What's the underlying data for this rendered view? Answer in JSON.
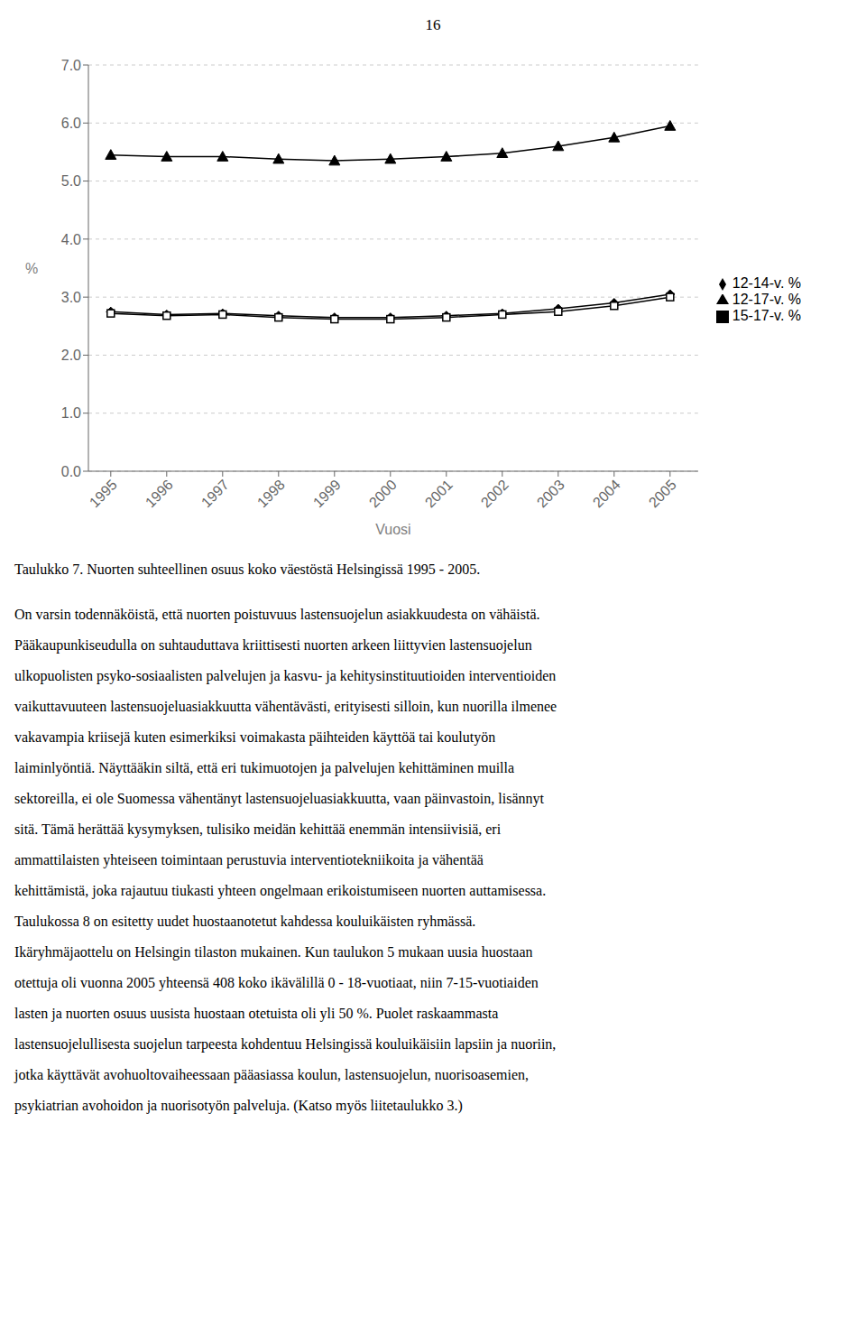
{
  "chart_data": {
    "type": "line",
    "title": "Taulukko 7. Nuorten suhteellinen osuus koko väestöstä Helsingissä 1995 - 2005.",
    "x": [
      1995,
      1996,
      1997,
      1998,
      1999,
      2000,
      2001,
      2002,
      2003,
      2004,
      2005
    ],
    "series": [
      {
        "name": "12-14-v. %",
        "color": "#000000",
        "marker": "diamond",
        "values": [
          2.75,
          2.7,
          2.72,
          2.68,
          2.65,
          2.65,
          2.68,
          2.72,
          2.8,
          2.9,
          3.05
        ]
      },
      {
        "name": "15-17-v. %",
        "color": "#000000",
        "marker": "square",
        "values": [
          2.72,
          2.68,
          2.7,
          2.65,
          2.62,
          2.62,
          2.65,
          2.7,
          2.75,
          2.85,
          3.0
        ]
      },
      {
        "name": "12-17-v. %",
        "color": "#000000",
        "marker": "triangle",
        "values": [
          5.45,
          5.42,
          5.42,
          5.38,
          5.35,
          5.38,
          5.42,
          5.48,
          5.6,
          5.75,
          5.95
        ]
      }
    ],
    "xlim": [
      1994.6,
      2005.5
    ],
    "xticks": [
      1995,
      1996,
      1997,
      1998,
      1999,
      2000,
      2001,
      2002,
      2003,
      2004,
      2005
    ],
    "ylim": [
      0.0,
      7.0
    ],
    "yticks": [
      {
        "value": 0,
        "label": "0.0"
      },
      {
        "value": 1,
        "label": "1.0"
      },
      {
        "value": 2,
        "label": "2.0"
      },
      {
        "value": 3,
        "label": "3.0"
      },
      {
        "value": 4,
        "label": "4.0"
      },
      {
        "value": 5,
        "label": "5.0"
      },
      {
        "value": 6,
        "label": "6.0"
      },
      {
        "value": 7,
        "label": "7.0"
      }
    ],
    "ylabel": "%",
    "xlabel": "Vuosi",
    "grid": true,
    "legend": "right",
    "annotations": [
      "16",
      "On varsin todennäköistä, että nuorten poistuvuus lastensuojelun asiakkuudesta on vähäistä.",
      "Pääkaupunkiseudulla on suhtauduttava kriittisesti nuorten arkeen liittyvien lastensuojelun",
      "ulkopuolisten psyko-sosiaalisten palvelujen ja kasvu- ja kehitysinstituutioiden interventioiden",
      "vaikuttavuuteen lastensuojeluasiakkuutta vähentävästi, erityisesti silloin, kun nuorilla ilmenee",
      "vakavampia kriisejä kuten esimerkiksi voimakasta päihteiden käyttöä tai koulutyön",
      "laiminlyöntiä. Näyttääkin siltä, että eri tukimuotojen ja palvelujen kehittäminen muilla",
      "sektoreilla, ei ole Suomessa vähentänyt lastensuojeluasiakkuutta, vaan päinvastoin, lisännyt",
      "sitä. Tämä herättää kysymyksen, tulisiko meidän kehittää enemmän intensiivisiä, eri",
      "ammattilaisten yhteiseen toimintaan perustuvia interventiotekniikoita ja vähentää",
      "kehittämistä, joka rajautuu tiukasti yhteen ongelmaan erikoistumiseen nuorten auttamisessa.",
      "Taulukossa 8 on esitetty uudet huostaanotetut kahdessa kouluikäisten ryhmässä.",
      "Ikäryhmäjaottelu on Helsingin tilaston mukainen. Kun taulukon 5 mukaan uusia huostaan",
      "otettuja oli vuonna 2005 yhteensä 408 koko ikävälillä 0 - 18-vuotiaat, niin 7-15-vuotiaiden",
      "lasten ja nuorten osuus uusista huostaan otetuista oli yli 50 %. Puolet raskaammasta",
      "lastensuojelullisesta suojelun tarpeesta kohdentuu Helsingissä kouluikäisiin lapsiin ja nuoriin,",
      "jotka käyttävät avohuoltovaiheessaan pääasiassa koulun, lastensuojelun, nuorisoasemien,",
      "psykiatrian avohoidon ja nuorisotyön palveluja. (Katso myös liitetaulukko 3.)"
    ]
  }
}
